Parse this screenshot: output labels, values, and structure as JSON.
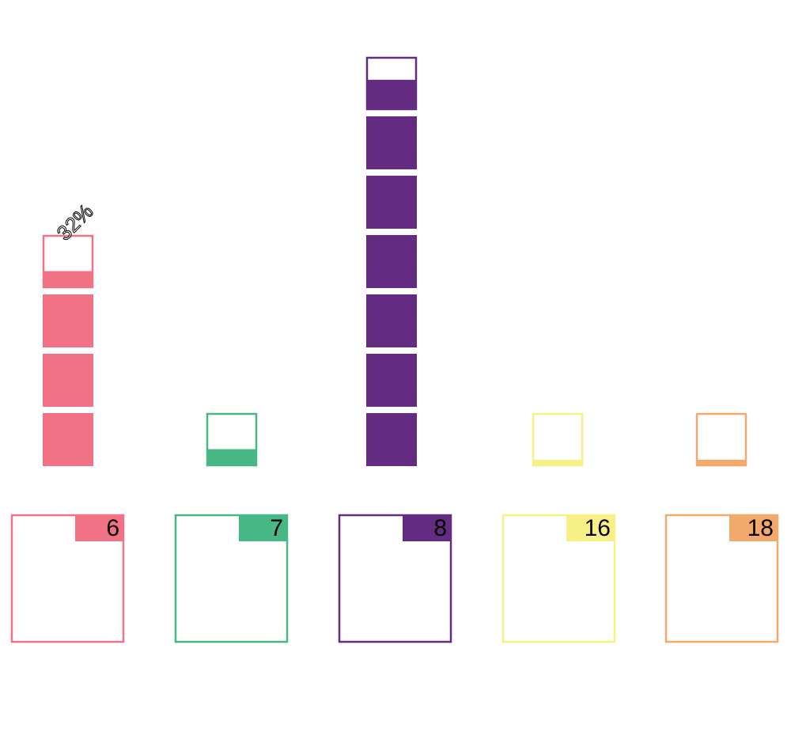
{
  "chart_data": {
    "type": "bar",
    "style": "waffle-unit-columns",
    "categories": [
      "6",
      "7",
      "8",
      "16",
      "18"
    ],
    "values": [
      3.32,
      0.32,
      6.57,
      0.12,
      0.12
    ],
    "colors": [
      "#f07284",
      "#47b785",
      "#632c82",
      "#f7f086",
      "#f3a86c"
    ],
    "annotations": [
      {
        "category": "6",
        "text": "32%"
      }
    ]
  }
}
